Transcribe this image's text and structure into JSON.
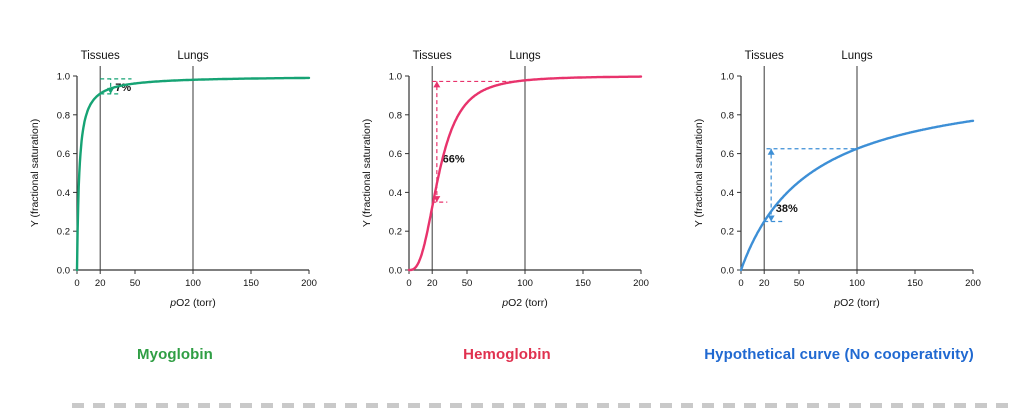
{
  "figure": {
    "background": "#ffffff"
  },
  "chart_data": [
    {
      "type": "line",
      "title": "Myoglobin",
      "curve_color": "#16A374",
      "title_color": "#2F9E44",
      "xlabel": "pO2 (torr)",
      "ylabel": "Y (fractional saturation)",
      "xlim": [
        0,
        200
      ],
      "ylim": [
        0,
        1
      ],
      "xticks": [
        0,
        20,
        50,
        100,
        150,
        200
      ],
      "yticks": [
        0,
        0.2,
        0.4,
        0.6,
        0.8,
        1
      ],
      "grid": false,
      "legend": "none",
      "vlines": [
        {
          "x": 20,
          "label": "Tissues"
        },
        {
          "x": 100,
          "label": "Lungs"
        }
      ],
      "model": {
        "equation": "hill",
        "p50": 2,
        "n": 1
      },
      "points": {
        "x": [
          0,
          5,
          10,
          15,
          20,
          26,
          30,
          40,
          50,
          75,
          100,
          150,
          200
        ],
        "y": [
          0,
          0.714,
          0.833,
          0.882,
          0.909,
          0.929,
          0.938,
          0.952,
          0.962,
          0.974,
          0.98,
          0.987,
          0.99
        ]
      },
      "annotation": {
        "label": "7%",
        "arrow": {
          "x": 29,
          "y1": 0.908,
          "y2": 0.985,
          "head_top": false,
          "head_bottom": true
        },
        "h_lines": [
          {
            "y": 0.985,
            "x1": 20,
            "x2": 47
          },
          {
            "y": 0.908,
            "x1": 20,
            "x2": 38
          }
        ],
        "label_pos": {
          "x": 33,
          "y": 0.922
        }
      }
    },
    {
      "type": "line",
      "title": "Hemoglobin",
      "curve_color": "#E8336C",
      "title_color": "#E0314F",
      "xlabel": "pO2 (torr)",
      "ylabel": "Y (fractional saturation)",
      "xlim": [
        0,
        200
      ],
      "ylim": [
        0,
        1
      ],
      "xticks": [
        0,
        20,
        50,
        100,
        150,
        200
      ],
      "yticks": [
        0,
        0.2,
        0.4,
        0.6,
        0.8,
        1
      ],
      "grid": false,
      "legend": "none",
      "vlines": [
        {
          "x": 20,
          "label": "Tissues"
        },
        {
          "x": 100,
          "label": "Lungs"
        }
      ],
      "model": {
        "equation": "hill",
        "p50": 26,
        "n": 2.8
      },
      "points": {
        "x": [
          0,
          5,
          10,
          15,
          20,
          26,
          30,
          40,
          50,
          75,
          100,
          150,
          200
        ],
        "y": [
          0,
          0.01,
          0.064,
          0.177,
          0.324,
          0.5,
          0.599,
          0.77,
          0.862,
          0.951,
          0.978,
          0.993,
          0.997
        ]
      },
      "annotation": {
        "label": "66%",
        "arrow": {
          "x": 24,
          "y1": 0.35,
          "y2": 0.972,
          "head_top": true,
          "head_bottom": true
        },
        "h_lines": [
          {
            "y": 0.972,
            "x1": 20,
            "x2": 95
          },
          {
            "y": 0.35,
            "x1": 20,
            "x2": 33
          }
        ],
        "label_pos": {
          "x": 29,
          "y": 0.555
        }
      }
    },
    {
      "type": "line",
      "title": "Hypothetical curve (No cooperativity)",
      "curve_color": "#3D8FD6",
      "title_color": "#2069D1",
      "xlabel": "pO2 (torr)",
      "ylabel": "Y (fractional saturation)",
      "xlim": [
        0,
        200
      ],
      "ylim": [
        0,
        1
      ],
      "xticks": [
        0,
        20,
        50,
        100,
        150,
        200
      ],
      "yticks": [
        0,
        0.2,
        0.4,
        0.6,
        0.8,
        1
      ],
      "grid": false,
      "legend": "none",
      "vlines": [
        {
          "x": 20,
          "label": "Tissues"
        },
        {
          "x": 100,
          "label": "Lungs"
        }
      ],
      "model": {
        "equation": "hill",
        "p50": 60,
        "n": 1
      },
      "points": {
        "x": [
          0,
          5,
          10,
          15,
          20,
          26,
          30,
          40,
          50,
          75,
          100,
          150,
          200
        ],
        "y": [
          0,
          0.077,
          0.143,
          0.2,
          0.25,
          0.302,
          0.333,
          0.4,
          0.455,
          0.556,
          0.625,
          0.714,
          0.769
        ]
      },
      "annotation": {
        "label": "38%",
        "arrow": {
          "x": 26,
          "y1": 0.25,
          "y2": 0.625,
          "head_top": true,
          "head_bottom": true
        },
        "h_lines": [
          {
            "y": 0.625,
            "x1": 22,
            "x2": 100
          },
          {
            "y": 0.25,
            "x1": 20,
            "x2": 36
          }
        ],
        "label_pos": {
          "x": 30,
          "y": 0.3
        }
      }
    }
  ]
}
